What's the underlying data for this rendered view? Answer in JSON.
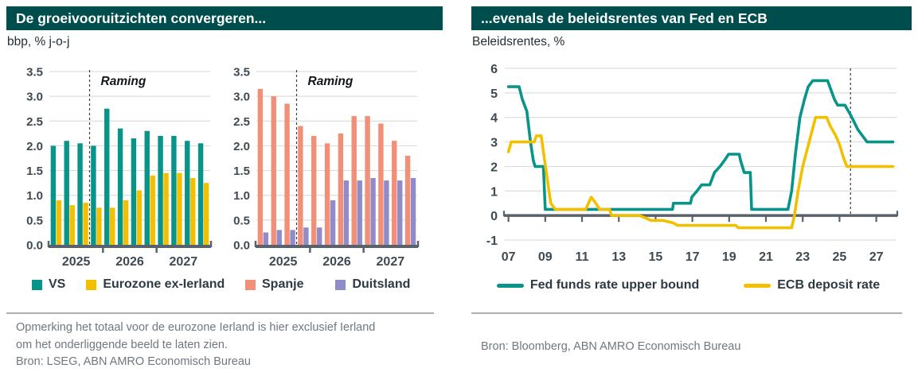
{
  "colors": {
    "header_bg": "#004D4D",
    "teal": "#089488",
    "yellow": "#F3C000",
    "salmon": "#F28F79",
    "purple": "#908BC9"
  },
  "panels": {
    "left": {
      "title": "De groeivooruitzichten convergeren...",
      "subtitle": "bbp, % j-o-j",
      "note_line1": "Opmerking het totaal voor de eurozone Ierland is hier exclusief Ierland",
      "note_line2": "om het onderliggende beeld te laten zien.",
      "source": "Bron: LSEG, ABN AMRO Economisch Bureau"
    },
    "right": {
      "title": "...evenals de beleidsrentes van Fed en ECB",
      "subtitle": "Beleidsrentes, %",
      "source": "Bron: Bloomberg, ABN AMRO Economisch Bureau"
    }
  },
  "chart_data": [
    {
      "type": "bar",
      "title": "De groeivooruitzichten convergeren...",
      "ylabel": "bbp, % j-o-j",
      "categories": [
        "2025Q1",
        "2025Q2",
        "2025Q3",
        "2025Q4",
        "2026Q1",
        "2026Q2",
        "2026Q3",
        "2026Q4",
        "2027Q1",
        "2027Q2",
        "2027Q3",
        "2027Q4"
      ],
      "series": [
        {
          "name": "VS",
          "color": "#089488",
          "values": [
            2.0,
            2.1,
            2.05,
            2.0,
            2.75,
            2.35,
            2.15,
            2.3,
            2.2,
            2.2,
            2.1,
            2.05
          ]
        },
        {
          "name": "Eurozone ex-Ierland",
          "color": "#F3C000",
          "values": [
            0.9,
            0.8,
            0.85,
            0.75,
            0.75,
            0.9,
            1.1,
            1.4,
            1.45,
            1.45,
            1.35,
            1.25
          ]
        }
      ],
      "ylim": [
        0,
        3.5
      ],
      "yticks": [
        {
          "v": 0.0,
          "l": "0.0"
        },
        {
          "v": 0.5,
          "l": "0.5"
        },
        {
          "v": 1.0,
          "l": "1.0"
        },
        {
          "v": 1.5,
          "l": "1.5"
        },
        {
          "v": 2.0,
          "l": "2.0"
        },
        {
          "v": 2.5,
          "l": "2.5"
        },
        {
          "v": 3.0,
          "l": "3.0"
        },
        {
          "v": 3.5,
          "l": "3.5"
        }
      ],
      "xticks": [
        "2025",
        "2026",
        "2027"
      ],
      "xtick_boundaries": [
        4,
        8
      ],
      "forecast_boundary_index": 3,
      "annotation": "Raming",
      "grid": "horizontal",
      "legend_position": "bottom"
    },
    {
      "type": "bar",
      "title": "De groeivooruitzichten convergeren...",
      "ylabel": "bbp, % j-o-j",
      "categories": [
        "2025Q1",
        "2025Q2",
        "2025Q3",
        "2025Q4",
        "2026Q1",
        "2026Q2",
        "2026Q3",
        "2026Q4",
        "2027Q1",
        "2027Q2",
        "2027Q3",
        "2027Q4"
      ],
      "series": [
        {
          "name": "Spanje",
          "color": "#F28F79",
          "values": [
            3.15,
            3.0,
            2.85,
            2.4,
            2.2,
            2.05,
            2.25,
            2.6,
            2.6,
            2.45,
            2.1,
            1.8
          ]
        },
        {
          "name": "Duitsland",
          "color": "#908BC9",
          "values": [
            0.25,
            0.3,
            0.3,
            0.35,
            0.35,
            0.9,
            1.3,
            1.3,
            1.35,
            1.3,
            1.3,
            1.35
          ]
        }
      ],
      "ylim": [
        0,
        3.5
      ],
      "yticks": [
        {
          "v": 0.0,
          "l": "0.0"
        },
        {
          "v": 0.5,
          "l": "0.5"
        },
        {
          "v": 1.0,
          "l": "1.0"
        },
        {
          "v": 1.5,
          "l": "1.5"
        },
        {
          "v": 2.0,
          "l": "2.0"
        },
        {
          "v": 2.5,
          "l": "2.5"
        },
        {
          "v": 3.0,
          "l": "3.0"
        },
        {
          "v": 3.5,
          "l": "3.5"
        }
      ],
      "xticks": [
        "2025",
        "2026",
        "2027"
      ],
      "xtick_boundaries": [
        4,
        8
      ],
      "forecast_boundary_index": 3,
      "annotation": "Raming",
      "grid": "horizontal",
      "legend_position": "bottom"
    },
    {
      "type": "line",
      "title": "...evenals de beleidsrentes van Fed en ECB",
      "ylabel": "Beleidsrentes, %",
      "xlim": [
        2006.8,
        2028.1
      ],
      "ylim": [
        -1,
        6
      ],
      "yticks": [
        {
          "v": 6,
          "l": "6"
        },
        {
          "v": 5,
          "l": "5"
        },
        {
          "v": 4,
          "l": "4"
        },
        {
          "v": 3,
          "l": "3"
        },
        {
          "v": 2,
          "l": "2"
        },
        {
          "v": 1,
          "l": "1"
        },
        {
          "v": 0,
          "l": "0"
        },
        {
          "v": -1,
          "l": "-1"
        }
      ],
      "xticks": [
        {
          "x": 2007,
          "l": "07"
        },
        {
          "x": 2009,
          "l": "09"
        },
        {
          "x": 2011,
          "l": "11"
        },
        {
          "x": 2013,
          "l": "13"
        },
        {
          "x": 2015,
          "l": "15"
        },
        {
          "x": 2017,
          "l": "17"
        },
        {
          "x": 2019,
          "l": "19"
        },
        {
          "x": 2021,
          "l": "21"
        },
        {
          "x": 2023,
          "l": "23"
        },
        {
          "x": 2025,
          "l": "25"
        },
        {
          "x": 2027,
          "l": "27"
        }
      ],
      "forecast_x": 2025.6,
      "grid": "horizontal",
      "legend_position": "bottom",
      "series": [
        {
          "name": "Fed funds rate upper bound",
          "color": "#089488",
          "points": [
            [
              2007.0,
              5.25
            ],
            [
              2007.58,
              5.25
            ],
            [
              2007.75,
              4.75
            ],
            [
              2008.0,
              4.25
            ],
            [
              2008.2,
              3.0
            ],
            [
              2008.35,
              2.25
            ],
            [
              2008.45,
              2.0
            ],
            [
              2008.9,
              2.0
            ],
            [
              2009.0,
              0.25
            ],
            [
              2015.92,
              0.25
            ],
            [
              2015.97,
              0.5
            ],
            [
              2016.9,
              0.5
            ],
            [
              2016.97,
              0.75
            ],
            [
              2017.25,
              1.0
            ],
            [
              2017.5,
              1.25
            ],
            [
              2017.95,
              1.25
            ],
            [
              2018.2,
              1.75
            ],
            [
              2018.5,
              2.0
            ],
            [
              2018.75,
              2.25
            ],
            [
              2018.97,
              2.5
            ],
            [
              2019.55,
              2.5
            ],
            [
              2019.62,
              2.25
            ],
            [
              2019.72,
              2.0
            ],
            [
              2019.82,
              1.75
            ],
            [
              2020.15,
              1.75
            ],
            [
              2020.22,
              0.25
            ],
            [
              2022.2,
              0.25
            ],
            [
              2022.4,
              1.0
            ],
            [
              2022.6,
              2.5
            ],
            [
              2022.85,
              4.0
            ],
            [
              2023.1,
              4.75
            ],
            [
              2023.3,
              5.25
            ],
            [
              2023.55,
              5.5
            ],
            [
              2024.35,
              5.5
            ],
            [
              2024.72,
              4.75
            ],
            [
              2024.9,
              4.5
            ],
            [
              2025.3,
              4.5
            ],
            [
              2025.6,
              4.1
            ],
            [
              2026.0,
              3.5
            ],
            [
              2026.5,
              3.0
            ],
            [
              2027.9,
              3.0
            ]
          ]
        },
        {
          "name": "ECB deposit rate",
          "color": "#F3C000",
          "points": [
            [
              2007.0,
              2.6
            ],
            [
              2007.15,
              3.0
            ],
            [
              2008.4,
              3.0
            ],
            [
              2008.52,
              3.25
            ],
            [
              2008.78,
              3.25
            ],
            [
              2009.3,
              0.5
            ],
            [
              2009.55,
              0.25
            ],
            [
              2011.2,
              0.25
            ],
            [
              2011.35,
              0.5
            ],
            [
              2011.5,
              0.75
            ],
            [
              2011.75,
              0.5
            ],
            [
              2011.95,
              0.25
            ],
            [
              2012.5,
              0.25
            ],
            [
              2012.6,
              0.0
            ],
            [
              2014.1,
              0.0
            ],
            [
              2014.45,
              -0.1
            ],
            [
              2014.75,
              -0.2
            ],
            [
              2015.4,
              -0.2
            ],
            [
              2015.95,
              -0.3
            ],
            [
              2016.2,
              -0.4
            ],
            [
              2019.35,
              -0.4
            ],
            [
              2019.5,
              -0.5
            ],
            [
              2022.4,
              -0.5
            ],
            [
              2022.55,
              0.0
            ],
            [
              2022.75,
              1.0
            ],
            [
              2023.0,
              2.0
            ],
            [
              2023.35,
              3.0
            ],
            [
              2023.7,
              4.0
            ],
            [
              2024.3,
              4.0
            ],
            [
              2024.5,
              3.65
            ],
            [
              2024.8,
              3.25
            ],
            [
              2025.0,
              2.9
            ],
            [
              2025.2,
              2.4
            ],
            [
              2025.4,
              2.0
            ],
            [
              2027.9,
              2.0
            ]
          ]
        }
      ]
    }
  ]
}
